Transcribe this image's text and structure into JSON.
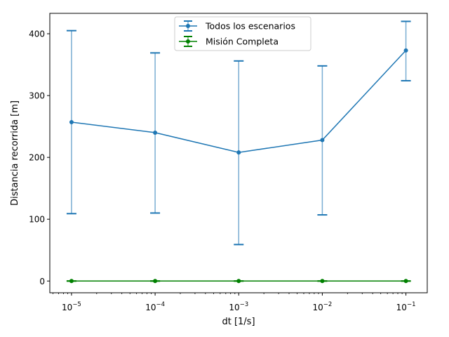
{
  "chart_data": {
    "type": "line",
    "title": "",
    "xlabel": "dt [1/s]",
    "ylabel": "Distancia recorrida [m]",
    "x_scale": "log",
    "x": [
      1e-05,
      0.0001,
      0.001,
      0.01,
      0.1
    ],
    "x_tick_labels": [
      {
        "base": "10",
        "exp": "−5"
      },
      {
        "base": "10",
        "exp": "−4"
      },
      {
        "base": "10",
        "exp": "−3"
      },
      {
        "base": "10",
        "exp": "−2"
      },
      {
        "base": "10",
        "exp": "−1"
      }
    ],
    "xlim": [
      5.5e-06,
      0.18
    ],
    "ylim": [
      -19,
      433
    ],
    "y_ticks": [
      0,
      100,
      200,
      300,
      400
    ],
    "grid": false,
    "legend_position": "top-center",
    "series": [
      {
        "name": "Todos los escenarios",
        "color": "#1f77b4",
        "values": [
          257,
          240,
          208,
          228,
          373
        ],
        "err_low": [
          109,
          110,
          59,
          107,
          324
        ],
        "err_high": [
          405,
          369,
          356,
          348,
          420
        ]
      },
      {
        "name": "Misión Completa",
        "color": "#008000",
        "values": [
          0,
          0,
          0,
          0,
          0
        ],
        "err_low": [
          0,
          0,
          0,
          0,
          0
        ],
        "err_high": [
          0,
          0,
          0,
          0,
          0
        ]
      }
    ]
  }
}
